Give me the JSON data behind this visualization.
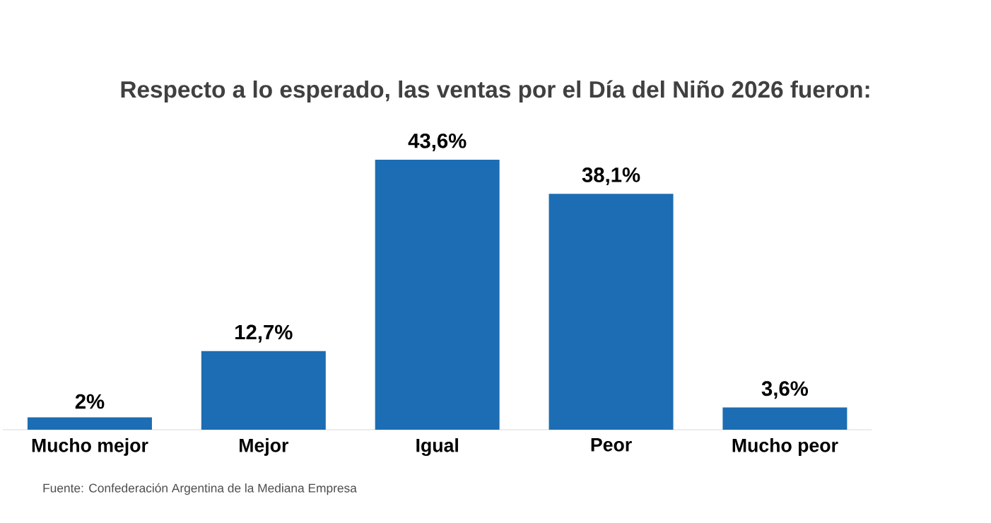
{
  "chart_data": {
    "type": "bar",
    "title": "Respecto a lo esperado, las ventas por el Día del Niño 2026 fueron:",
    "categories": [
      "Mucho mejor",
      "Mejor",
      "Igual",
      "Peor",
      "Mucho peor"
    ],
    "values": [
      2,
      12.7,
      43.6,
      38.1,
      3.6
    ],
    "value_labels": [
      "2%",
      "12,7%",
      "43,6%",
      "38,1%",
      "3,6%"
    ],
    "color": "#1c6db3",
    "annotations": [
      "Fuente: Confederación Argentina de la Mediana Empresa"
    ]
  }
}
